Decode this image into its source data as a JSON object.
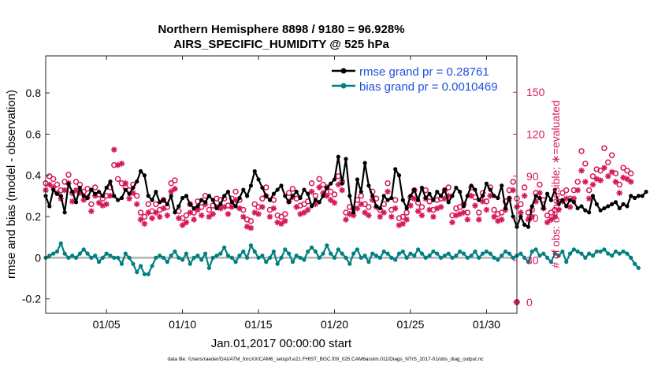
{
  "chart_data": {
    "type": "line",
    "title_line1": "Northern Hemisphere 8898 / 9180 = 96.928%",
    "title_line2": "AIRS_SPECIFIC_HUMIDITY @ 525 hPa",
    "ylabel_left": "rmse and bias (model - observation)",
    "ylabel_right": "# of obs: o=possible; ∗=evaluated",
    "xlabel": "Jan.01,2017 00:00:00 start",
    "footer": "data file: /Users/raeder/DAI/ATM_forcXX/CAM6_setup/f.e21.FHIST_BGC.f09_025.CAM6assim.011/Diags_NTrS_2017-01/obs_diag_output.nc",
    "xlim": [
      1,
      32
    ],
    "ylim_left": [
      -0.27,
      0.98
    ],
    "ylim_right": [
      -8,
      176
    ],
    "xticks": [
      5,
      10,
      15,
      20,
      25,
      30
    ],
    "xtick_labels": [
      "01/05",
      "01/10",
      "01/15",
      "01/20",
      "01/25",
      "01/30"
    ],
    "yticks_left": [
      -0.2,
      0,
      0.2,
      0.4,
      0.6,
      0.8
    ],
    "ytick_labels_left": [
      "-0.2",
      "0",
      "0.2",
      "0.4",
      "0.6",
      "0.8"
    ],
    "yticks_right": [
      0,
      30,
      60,
      90,
      120,
      150
    ],
    "ytick_labels_right": [
      "0",
      "30",
      "60",
      "90",
      "120",
      "150"
    ],
    "colors": {
      "rmse": "#000000",
      "bias": "#008080",
      "obs": "#d6195b",
      "zero_line": "#b4b4b4",
      "legend_text": "#1f4fe0"
    },
    "legend": {
      "position": "top-right",
      "entries": [
        {
          "name": "rmse grand pr = 0.28761",
          "color": "#000000"
        },
        {
          "name": "bias grand pr = 0.0010469",
          "color": "#008080"
        }
      ]
    },
    "series": [
      {
        "name": "rmse",
        "axis": "left",
        "x_start": 1.0,
        "x_step": 0.25,
        "values": [
          0.3,
          0.25,
          0.33,
          0.31,
          0.3,
          0.22,
          0.36,
          0.32,
          0.27,
          0.34,
          0.3,
          0.29,
          0.33,
          0.31,
          0.32,
          0.3,
          0.34,
          0.37,
          0.3,
          0.28,
          0.29,
          0.33,
          0.31,
          0.34,
          0.37,
          0.42,
          0.4,
          0.3,
          0.28,
          0.32,
          0.27,
          0.28,
          0.26,
          0.3,
          0.22,
          0.25,
          0.29,
          0.3,
          0.26,
          0.24,
          0.25,
          0.28,
          0.27,
          0.3,
          0.28,
          0.24,
          0.26,
          0.3,
          0.32,
          0.27,
          0.25,
          0.29,
          0.33,
          0.3,
          0.35,
          0.42,
          0.38,
          0.34,
          0.3,
          0.28,
          0.31,
          0.33,
          0.35,
          0.3,
          0.27,
          0.3,
          0.32,
          0.29,
          0.33,
          0.31,
          0.25,
          0.28,
          0.27,
          0.3,
          0.34,
          0.36,
          0.38,
          0.49,
          0.36,
          0.48,
          0.3,
          0.22,
          0.38,
          0.32,
          0.46,
          0.35,
          0.3,
          0.25,
          0.24,
          0.3,
          0.28,
          0.29,
          0.43,
          0.4,
          0.28,
          0.24,
          0.3,
          0.33,
          0.28,
          0.34,
          0.29,
          0.31,
          0.28,
          0.32,
          0.3,
          0.33,
          0.27,
          0.3,
          0.34,
          0.32,
          0.25,
          0.3,
          0.35,
          0.33,
          0.28,
          0.3,
          0.36,
          0.33,
          0.3,
          0.29,
          0.35,
          0.24,
          0.29,
          0.2,
          0.15,
          0.2,
          0.16,
          0.15,
          0.25,
          0.3,
          0.29,
          0.24,
          0.31,
          0.28,
          0.33,
          0.26,
          0.28,
          0.25,
          0.28,
          0.27,
          0.24,
          0.25,
          0.23,
          0.22,
          0.3,
          0.26,
          0.23,
          0.24,
          0.25,
          0.26,
          0.27,
          0.24,
          0.26,
          0.25,
          0.3,
          0.29,
          0.3,
          0.3,
          0.32
        ]
      },
      {
        "name": "bias",
        "axis": "left",
        "x_start": 1.0,
        "x_step": 0.25,
        "values": [
          0.0,
          0.01,
          0.02,
          0.03,
          0.07,
          0.02,
          0.0,
          0.01,
          0.0,
          0.02,
          0.04,
          0.02,
          0.0,
          0.01,
          -0.02,
          0.0,
          0.02,
          0.01,
          0.0,
          0.0,
          -0.03,
          0.02,
          0.0,
          -0.03,
          -0.07,
          -0.04,
          -0.08,
          -0.08,
          -0.04,
          0.0,
          0.01,
          0.0,
          -0.02,
          0.01,
          0.03,
          0.0,
          -0.01,
          0.02,
          -0.03,
          0.0,
          0.01,
          -0.01,
          0.02,
          -0.05,
          0.0,
          0.01,
          0.02,
          0.05,
          0.01,
          0.0,
          -0.02,
          0.01,
          0.03,
          0.0,
          0.06,
          0.03,
          0.0,
          0.01,
          -0.02,
          0.0,
          0.03,
          -0.03,
          0.0,
          0.04,
          0.02,
          -0.02,
          0.01,
          0.0,
          -0.01,
          0.03,
          0.05,
          0.03,
          0.0,
          0.02,
          0.06,
          0.02,
          0.0,
          0.04,
          0.02,
          0.0,
          -0.03,
          0.02,
          0.04,
          0.0,
          0.01,
          -0.02,
          0.02,
          0.01,
          0.0,
          0.03,
          0.02,
          0.0,
          -0.01,
          0.02,
          0.03,
          0.0,
          0.02,
          0.01,
          0.04,
          0.02,
          0.0,
          0.01,
          0.03,
          0.02,
          0.0,
          0.01,
          0.02,
          0.0,
          0.01,
          0.03,
          0.02,
          0.0,
          0.01,
          0.03,
          0.0,
          0.02,
          0.03,
          0.02,
          0.0,
          -0.01,
          0.01,
          0.03,
          0.02,
          0.0,
          0.01,
          0.02,
          0.0,
          -0.02,
          0.03,
          0.04,
          0.01,
          0.02,
          0.0,
          -0.02,
          0.02,
          0.01,
          0.03,
          -0.02,
          0.02,
          0.04,
          0.03,
          0.02,
          0.0,
          0.02,
          0.01,
          0.03,
          0.03,
          0.04,
          0.02,
          0.01,
          0.03,
          0.02,
          0.03,
          0.02,
          0.0,
          -0.03,
          -0.05
        ]
      },
      {
        "name": "obs_possible",
        "axis": "right",
        "marker": "o",
        "x_start": 1.0,
        "x_step": 0.25,
        "values": [
          85,
          90,
          88,
          84,
          80,
          86,
          91,
          78,
          86,
          84,
          79,
          81,
          70,
          82,
          77,
          74,
          76,
          82,
          98,
          88,
          85,
          82,
          80,
          84,
          76,
          64,
          61,
          70,
          65,
          70,
          66,
          73,
          68,
          85,
          87,
          65,
          60,
          62,
          70,
          64,
          72,
          68,
          76,
          66,
          69,
          74,
          73,
          74,
          69,
          74,
          79,
          73,
          66,
          59,
          58,
          70,
          68,
          74,
          82,
          66,
          73,
          62,
          61,
          63,
          78,
          81,
          74,
          69,
          70,
          72,
          85,
          76,
          88,
          84,
          82,
          79,
          77,
          90,
          86,
          64,
          68,
          67,
          73,
          76,
          70,
          68,
          79,
          74,
          66,
          70,
          85,
          66,
          73,
          60,
          61,
          64,
          75,
          80,
          71,
          68,
          80,
          72,
          66,
          73,
          74,
          80,
          82,
          62,
          67,
          68,
          70,
          64,
          82,
          75,
          64,
          78,
          72,
          82,
          66,
          63,
          64,
          72,
          80,
          86,
          74,
          70,
          82,
          64,
          66,
          78,
          84,
          73,
          62,
          64,
          66,
          72,
          78,
          80,
          74,
          80,
          86,
          108,
          99,
          80,
          90,
          95,
          94,
          110,
          100,
          105,
          92,
          84,
          96,
          94,
          92
        ]
      },
      {
        "name": "obs_evaluated",
        "axis": "right",
        "marker": "*",
        "x_start": 1.0,
        "x_step": 0.25,
        "values": [
          80,
          84,
          82,
          78,
          74,
          80,
          85,
          72,
          80,
          78,
          73,
          75,
          65,
          76,
          71,
          69,
          70,
          76,
          109,
          98,
          99,
          85,
          74,
          78,
          70,
          59,
          56,
          64,
          60,
          64,
          61,
          67,
          62,
          79,
          81,
          60,
          55,
          57,
          64,
          59,
          66,
          62,
          70,
          61,
          63,
          68,
          67,
          68,
          63,
          68,
          73,
          67,
          61,
          54,
          53,
          64,
          63,
          68,
          76,
          61,
          67,
          57,
          56,
          58,
          72,
          75,
          68,
          63,
          64,
          66,
          79,
          70,
          82,
          78,
          76,
          73,
          71,
          84,
          80,
          59,
          63,
          62,
          67,
          70,
          64,
          62,
          73,
          68,
          61,
          64,
          79,
          61,
          67,
          55,
          56,
          59,
          69,
          74,
          65,
          62,
          74,
          66,
          61,
          67,
          68,
          74,
          76,
          57,
          62,
          63,
          64,
          59,
          76,
          69,
          59,
          72,
          66,
          76,
          61,
          58,
          59,
          66,
          74,
          80,
          68,
          64,
          76,
          59,
          61,
          72,
          78,
          67,
          57,
          59,
          61,
          66,
          72,
          74,
          68,
          74,
          80,
          94,
          86,
          74,
          84,
          88,
          87,
          96,
          90,
          93,
          86,
          78,
          89,
          88,
          86
        ]
      },
      {
        "name": "obs_at_end",
        "axis": "right",
        "x": [
          32,
          32
        ],
        "values": [
          0,
          0
        ]
      }
    ]
  }
}
